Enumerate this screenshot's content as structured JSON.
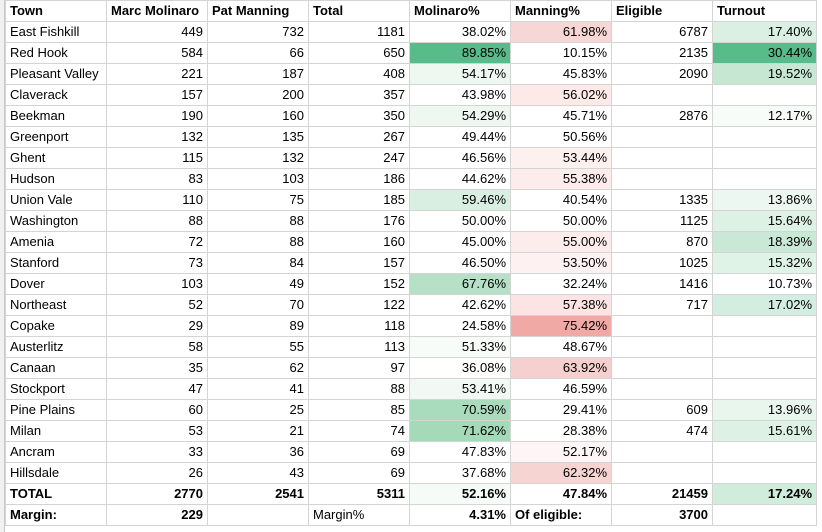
{
  "headers": [
    "Town",
    "Marc Molinaro",
    "Pat Manning",
    "Total",
    "Molinaro%",
    "Manning%",
    "Eligible",
    "Turnout"
  ],
  "rows": [
    {
      "town": "East Fishkill",
      "mol": "449",
      "man": "732",
      "total": "1181",
      "molpct": "38.02%",
      "manpct": "61.98%",
      "eligible": "6787",
      "turnout": "17.40%",
      "molbg": "",
      "manbg": "#f7d7d5",
      "turnbg": "#d9f0e2"
    },
    {
      "town": "Red Hook",
      "mol": "584",
      "man": "66",
      "total": "650",
      "molpct": "89.85%",
      "manpct": "10.15%",
      "eligible": "2135",
      "turnout": "30.44%",
      "molbg": "#57bb8a",
      "manbg": "",
      "turnbg": "#57bb8a"
    },
    {
      "town": "Pleasant Valley",
      "mol": "221",
      "man": "187",
      "total": "408",
      "molpct": "54.17%",
      "manpct": "45.83%",
      "eligible": "2090",
      "turnout": "19.52%",
      "molbg": "#eef8f1",
      "manbg": "",
      "turnbg": "#c6e8d3"
    },
    {
      "town": "Claverack",
      "mol": "157",
      "man": "200",
      "total": "357",
      "molpct": "43.98%",
      "manpct": "56.02%",
      "eligible": "",
      "turnout": "",
      "molbg": "",
      "manbg": "#fce9e8",
      "turnbg": ""
    },
    {
      "town": "Beekman",
      "mol": "190",
      "man": "160",
      "total": "350",
      "molpct": "54.29%",
      "manpct": "45.71%",
      "eligible": "2876",
      "turnout": "12.17%",
      "molbg": "#eef8f1",
      "manbg": "",
      "turnbg": "#f7fcf9"
    },
    {
      "town": "Greenport",
      "mol": "132",
      "man": "135",
      "total": "267",
      "molpct": "49.44%",
      "manpct": "50.56%",
      "eligible": "",
      "turnout": "",
      "molbg": "",
      "manbg": "",
      "turnbg": ""
    },
    {
      "town": "Ghent",
      "mol": "115",
      "man": "132",
      "total": "247",
      "molpct": "46.56%",
      "manpct": "53.44%",
      "eligible": "",
      "turnout": "",
      "molbg": "",
      "manbg": "#fdf1f0",
      "turnbg": ""
    },
    {
      "town": "Hudson",
      "mol": "83",
      "man": "103",
      "total": "186",
      "molpct": "44.62%",
      "manpct": "55.38%",
      "eligible": "",
      "turnout": "",
      "molbg": "",
      "manbg": "#fceceb",
      "turnbg": ""
    },
    {
      "town": "Union Vale",
      "mol": "110",
      "man": "75",
      "total": "185",
      "molpct": "59.46%",
      "manpct": "40.54%",
      "eligible": "1335",
      "turnout": "13.86%",
      "molbg": "#d8efe1",
      "manbg": "",
      "turnbg": "#ebf7f0"
    },
    {
      "town": "Washington",
      "mol": "88",
      "man": "88",
      "total": "176",
      "molpct": "50.00%",
      "manpct": "50.00%",
      "eligible": "1125",
      "turnout": "15.64%",
      "molbg": "",
      "manbg": "",
      "turnbg": "#ddf2e5"
    },
    {
      "town": "Amenia",
      "mol": "72",
      "man": "88",
      "total": "160",
      "molpct": "45.00%",
      "manpct": "55.00%",
      "eligible": "870",
      "turnout": "18.39%",
      "molbg": "",
      "manbg": "#fcedec",
      "turnbg": "#c9e9d6"
    },
    {
      "town": "Stanford",
      "mol": "73",
      "man": "84",
      "total": "157",
      "molpct": "46.50%",
      "manpct": "53.50%",
      "eligible": "1025",
      "turnout": "15.32%",
      "molbg": "",
      "manbg": "#fdf2f1",
      "turnbg": "#e0f3e7"
    },
    {
      "town": "Dover",
      "mol": "103",
      "man": "49",
      "total": "152",
      "molpct": "67.76%",
      "manpct": "32.24%",
      "eligible": "1416",
      "turnout": "10.73%",
      "molbg": "#b6e1c7",
      "manbg": "",
      "turnbg": ""
    },
    {
      "town": "Northeast",
      "mol": "52",
      "man": "70",
      "total": "122",
      "molpct": "42.62%",
      "manpct": "57.38%",
      "eligible": "717",
      "turnout": "17.02%",
      "molbg": "",
      "manbg": "#fbe4e3",
      "turnbg": "#d3ede0"
    },
    {
      "town": "Copake",
      "mol": "29",
      "man": "89",
      "total": "118",
      "molpct": "24.58%",
      "manpct": "75.42%",
      "eligible": "",
      "turnout": "",
      "molbg": "",
      "manbg": "#f0a9a5",
      "turnbg": ""
    },
    {
      "town": "Austerlitz",
      "mol": "58",
      "man": "55",
      "total": "113",
      "molpct": "51.33%",
      "manpct": "48.67%",
      "eligible": "",
      "turnout": "",
      "molbg": "#f8fcf9",
      "manbg": "",
      "turnbg": ""
    },
    {
      "town": "Canaan",
      "mol": "35",
      "man": "62",
      "total": "97",
      "molpct": "36.08%",
      "manpct": "63.92%",
      "eligible": "",
      "turnout": "",
      "molbg": "",
      "manbg": "#f5d0ce",
      "turnbg": ""
    },
    {
      "town": "Stockport",
      "mol": "47",
      "man": "41",
      "total": "88",
      "molpct": "53.41%",
      "manpct": "46.59%",
      "eligible": "",
      "turnout": "",
      "molbg": "#f1f9f4",
      "manbg": "",
      "turnbg": ""
    },
    {
      "town": "Pine Plains",
      "mol": "60",
      "man": "25",
      "total": "85",
      "molpct": "70.59%",
      "manpct": "29.41%",
      "eligible": "609",
      "turnout": "13.96%",
      "molbg": "#a9dcbd",
      "manbg": "",
      "turnbg": "#e9f6ee"
    },
    {
      "town": "Milan",
      "mol": "53",
      "man": "21",
      "total": "74",
      "molpct": "71.62%",
      "manpct": "28.38%",
      "eligible": "474",
      "turnout": "15.61%",
      "molbg": "#a5dab9",
      "manbg": "",
      "turnbg": "#ddf2e5"
    },
    {
      "town": "Ancram",
      "mol": "33",
      "man": "36",
      "total": "69",
      "molpct": "47.83%",
      "manpct": "52.17%",
      "eligible": "",
      "turnout": "",
      "molbg": "",
      "manbg": "#fef6f6",
      "turnbg": ""
    },
    {
      "town": "Hillsdale",
      "mol": "26",
      "man": "43",
      "total": "69",
      "molpct": "37.68%",
      "manpct": "62.32%",
      "eligible": "",
      "turnout": "",
      "molbg": "",
      "manbg": "#f6d4d2",
      "turnbg": ""
    }
  ],
  "total_row": {
    "town": "TOTAL",
    "mol": "2770",
    "man": "2541",
    "total": "5311",
    "molpct": "52.16%",
    "manpct": "47.84%",
    "eligible": "21459",
    "turnout": "17.24%",
    "molbg": "#f5fbf7",
    "manbg": "",
    "turnbg": "#d0ecdb"
  },
  "margin_row": {
    "label": "Margin:",
    "margin": "229",
    "pct_label": "Margin%",
    "pct": "4.31%",
    "elig_label": "Of eligible:",
    "elig_value": "3700"
  }
}
